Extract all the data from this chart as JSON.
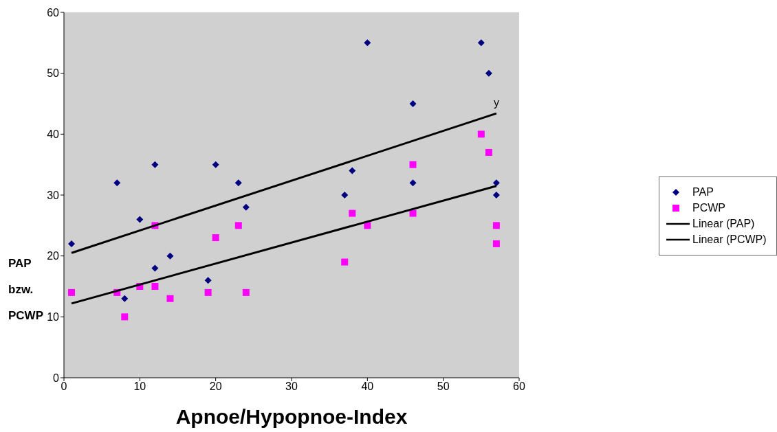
{
  "chart_data": {
    "type": "scatter",
    "xlabel": "Apnoe/Hypopnoe-Index",
    "ylabel": "PAP bzw. PCWP",
    "xlim": [
      0,
      60
    ],
    "ylim": [
      0,
      60
    ],
    "xticks": [
      0,
      10,
      20,
      30,
      40,
      50,
      60
    ],
    "yticks": [
      0,
      10,
      20,
      30,
      40,
      50,
      60
    ],
    "grid": false,
    "legend": "right",
    "annotations": [
      {
        "text": "y",
        "x": 57,
        "y": 43.4
      }
    ],
    "series": [
      {
        "name": "PAP",
        "color": "#000080",
        "marker": "diamond",
        "x": [
          1,
          7,
          8,
          10,
          12,
          12,
          14,
          19,
          20,
          23,
          24,
          37,
          38,
          40,
          46,
          46,
          55,
          56,
          57,
          57
        ],
        "values": [
          22,
          32,
          13,
          26,
          35,
          18,
          20,
          16,
          35,
          32,
          28,
          30,
          34,
          55,
          45,
          32,
          55,
          50,
          32,
          30
        ]
      },
      {
        "name": "PCWP",
        "color": "#ff00ff",
        "marker": "square",
        "x": [
          1,
          7,
          8,
          10,
          12,
          12,
          14,
          19,
          20,
          23,
          24,
          37,
          38,
          40,
          46,
          46,
          55,
          56,
          57,
          57
        ],
        "values": [
          14,
          14,
          10,
          15,
          25,
          15,
          13,
          14,
          23,
          25,
          14,
          19,
          27,
          25,
          35,
          27,
          40,
          37,
          25,
          22
        ]
      },
      {
        "name": "Linear (PAP)",
        "type": "line",
        "color": "#000000",
        "x": [
          1,
          57
        ],
        "values": [
          20.5,
          43.4
        ]
      },
      {
        "name": "Linear (PCWP)",
        "type": "line",
        "color": "#000000",
        "x": [
          1,
          57
        ],
        "values": [
          12.2,
          31.5
        ]
      }
    ]
  }
}
